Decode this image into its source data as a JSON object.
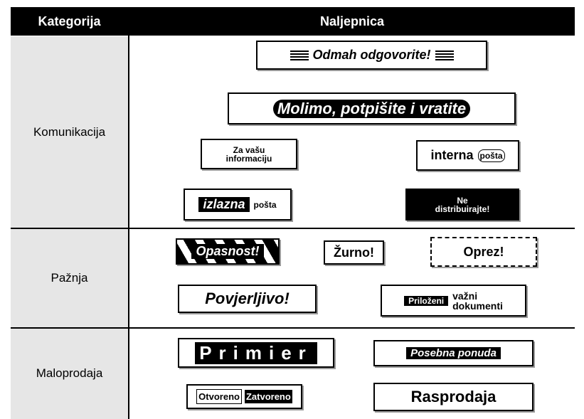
{
  "table": {
    "header": [
      "Kategorija",
      "Naljepnica"
    ],
    "rows": [
      {
        "category": "Komunikacija",
        "labels": [
          [
            "Odmah odgovorite!"
          ],
          [
            "Molimo, potpišite i vratite"
          ],
          [
            "Za vašu",
            "informaciju"
          ],
          [
            "interna",
            "pošta"
          ],
          [
            "izlazna",
            "pošta"
          ],
          [
            "Ne",
            "distribuirajte!"
          ]
        ]
      },
      {
        "category": "Pažnja",
        "labels": [
          [
            "Opasnost!"
          ],
          [
            "Žurno!"
          ],
          [
            "Oprez!"
          ],
          [
            "Povjerljivo!"
          ],
          [
            "Priloženi",
            "važni",
            "dokumenti"
          ]
        ]
      },
      {
        "category": "Maloprodaja",
        "labels": [
          [
            "Primier"
          ],
          [
            "Posebna ponuda"
          ],
          [
            "Otvoreno",
            "Zatvoreno"
          ],
          [
            "Rasprodaja"
          ]
        ]
      }
    ]
  }
}
